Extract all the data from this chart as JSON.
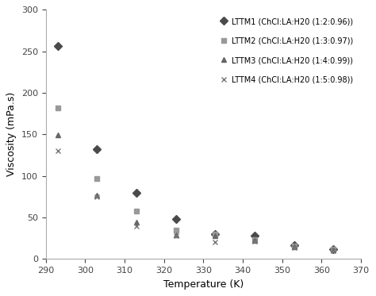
{
  "xlabel": "Temperature (K)",
  "ylabel": "Viscosity (mPa.s)",
  "xlim": [
    290,
    370
  ],
  "ylim": [
    0,
    300
  ],
  "xticks": [
    290,
    300,
    310,
    320,
    330,
    340,
    350,
    360,
    370
  ],
  "yticks": [
    0,
    50,
    100,
    150,
    200,
    250,
    300
  ],
  "series": [
    {
      "label": "LTTM1 (ChCl:LA:H20 (1:2:0.96))",
      "marker": "D",
      "marker_color": "#4a4a4a",
      "markersize": 5,
      "x": [
        293,
        303,
        313,
        323,
        333,
        343,
        353,
        363
      ],
      "y": [
        256,
        132,
        80,
        48,
        30,
        28,
        17,
        12
      ]
    },
    {
      "label": "LTTM2 (ChCl:LA:H20 (1:3:0.97))",
      "marker": "s",
      "marker_color": "#999999",
      "markersize": 5,
      "x": [
        293,
        303,
        313,
        323,
        333,
        343,
        353,
        363
      ],
      "y": [
        182,
        97,
        58,
        35,
        30,
        23,
        16,
        12
      ]
    },
    {
      "label": "LTTM3 (ChCl:LA:H20 (1:4:0.99))",
      "marker": "^",
      "marker_color": "#666666",
      "markersize": 5,
      "x": [
        293,
        303,
        313,
        323,
        333,
        343,
        353,
        363
      ],
      "y": [
        149,
        77,
        44,
        29,
        28,
        22,
        15,
        11
      ]
    },
    {
      "label": "LTTM4 (ChCl:LA:H20 (1:5:0.98))",
      "marker": "x",
      "marker_color": "#777777",
      "markersize": 5,
      "x": [
        293,
        303,
        313,
        323,
        333,
        343,
        353,
        363
      ],
      "y": [
        130,
        75,
        40,
        28,
        20,
        21,
        14,
        10
      ]
    }
  ],
  "curve_color": "#333333",
  "curve_linewidth": 1.0,
  "background_color": "#ffffff",
  "legend_fontsize": 7.0,
  "axis_fontsize": 9,
  "tick_fontsize": 8,
  "fit_xmin": 290,
  "fit_xmax": 367
}
